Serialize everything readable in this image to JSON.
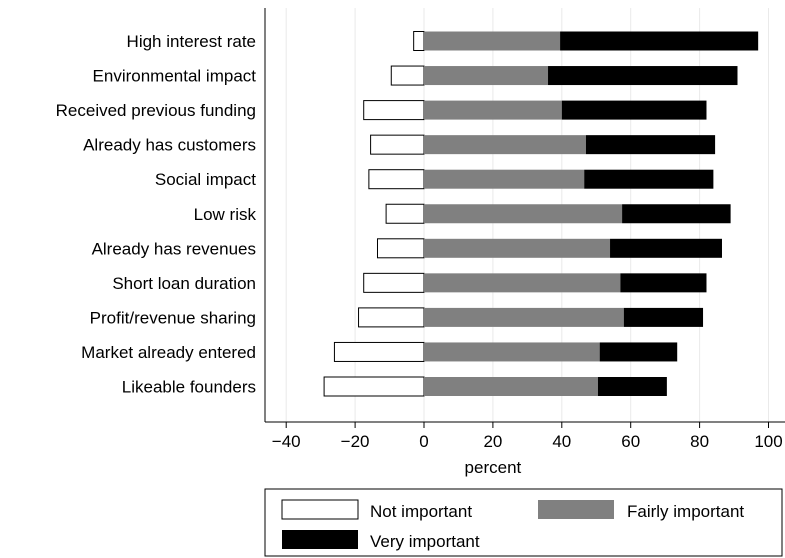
{
  "chart_data": {
    "type": "bar",
    "orientation": "horizontal",
    "stacked": "diverging",
    "categories": [
      "High interest rate",
      "Environmental impact",
      "Received previous funding",
      "Already has customers",
      "Social impact",
      "Low risk",
      "Already has revenues",
      "Short loan duration",
      "Profit/revenue sharing",
      "Market already entered",
      "Likeable founders"
    ],
    "series": [
      {
        "name": "Not important",
        "color": "#ffffff",
        "values": [
          -3,
          -9.5,
          -17.5,
          -15.5,
          -16,
          -11,
          -13.5,
          -17.5,
          -19,
          -26,
          -29
        ]
      },
      {
        "name": "Fairly important",
        "color": "#808080",
        "values": [
          39.5,
          36,
          40,
          47,
          46.5,
          57.5,
          54,
          57,
          58,
          51,
          50.5
        ]
      },
      {
        "name": "Very important",
        "color": "#000000",
        "values": [
          57.5,
          55,
          42,
          37.5,
          37.5,
          31.5,
          32.5,
          25,
          23,
          22.5,
          20
        ]
      }
    ],
    "xlabel": "percent",
    "xlim": [
      -47,
      104
    ],
    "xticks": [
      -40,
      -20,
      0,
      20,
      40,
      60,
      80,
      100
    ],
    "xtick_labels": [
      "−40",
      "−20",
      "0",
      "20",
      "40",
      "60",
      "80",
      "100"
    ],
    "grid": true,
    "legend": {
      "position": "bottom",
      "items": [
        "Not important",
        "Fairly important",
        "Very important"
      ]
    }
  }
}
